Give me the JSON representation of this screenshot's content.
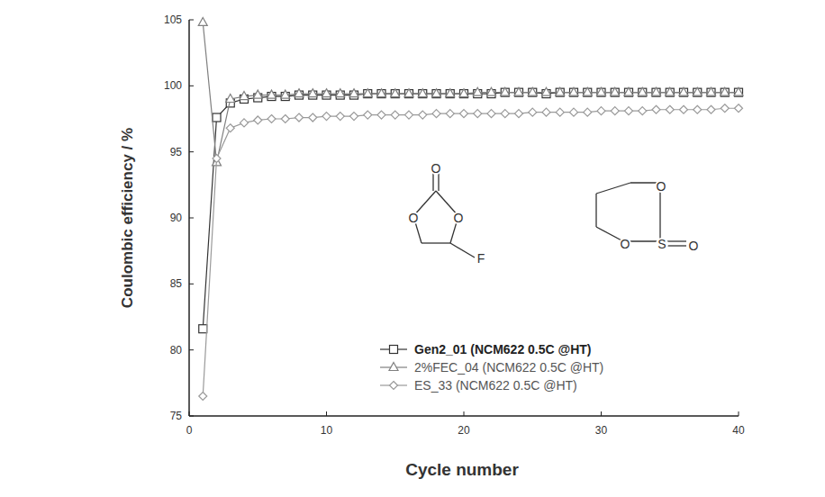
{
  "chart_data": {
    "type": "line",
    "x_label": "Cycle number",
    "y_label": "Coulombic efficiency / %",
    "x": [
      1,
      2,
      3,
      4,
      5,
      6,
      7,
      8,
      9,
      10,
      11,
      12,
      13,
      14,
      15,
      16,
      17,
      18,
      19,
      20,
      21,
      22,
      23,
      24,
      25,
      26,
      27,
      28,
      29,
      30,
      31,
      32,
      33,
      34,
      35,
      36,
      37,
      38,
      39,
      40
    ],
    "series": [
      {
        "name": "Gen2_01 (NCM622 0.5C @HT)",
        "color": "#333333",
        "marker": "square",
        "values": [
          81.6,
          97.6,
          98.7,
          99.0,
          99.1,
          99.2,
          99.2,
          99.3,
          99.3,
          99.3,
          99.3,
          99.3,
          99.4,
          99.4,
          99.4,
          99.4,
          99.4,
          99.4,
          99.4,
          99.4,
          99.4,
          99.4,
          99.5,
          99.5,
          99.5,
          99.4,
          99.5,
          99.5,
          99.5,
          99.5,
          99.5,
          99.5,
          99.5,
          99.5,
          99.5,
          99.5,
          99.5,
          99.5,
          99.5,
          99.5
        ]
      },
      {
        "name": "2%FEC_04 (NCM622 0.5C @HT)",
        "color": "#808080",
        "marker": "triangle",
        "values": [
          104.8,
          94.2,
          99.0,
          99.2,
          99.3,
          99.3,
          99.3,
          99.4,
          99.4,
          99.4,
          99.4,
          99.4,
          99.4,
          99.4,
          99.4,
          99.4,
          99.4,
          99.4,
          99.4,
          99.4,
          99.5,
          99.5,
          99.5,
          99.5,
          99.5,
          99.5,
          99.5,
          99.5,
          99.5,
          99.5,
          99.5,
          99.5,
          99.5,
          99.5,
          99.5,
          99.5,
          99.5,
          99.5,
          99.5,
          99.5
        ]
      },
      {
        "name": "ES_33 (NCM622 0.5C @HT)",
        "color": "#9a9a9a",
        "marker": "diamond",
        "values": [
          76.5,
          94.5,
          96.8,
          97.2,
          97.4,
          97.5,
          97.5,
          97.6,
          97.6,
          97.7,
          97.7,
          97.7,
          97.8,
          97.8,
          97.8,
          97.8,
          97.8,
          97.9,
          97.9,
          97.9,
          97.9,
          97.9,
          97.9,
          97.9,
          98.0,
          98.0,
          98.0,
          98.0,
          98.0,
          98.1,
          98.1,
          98.1,
          98.1,
          98.2,
          98.2,
          98.2,
          98.2,
          98.2,
          98.3,
          98.3
        ]
      }
    ],
    "xlim": [
      0,
      40
    ],
    "xticks": [
      0,
      10,
      20,
      30,
      40
    ],
    "ylim": [
      75,
      105
    ],
    "yticks": [
      75,
      80,
      85,
      90,
      95,
      100,
      105
    ],
    "grid": false,
    "legend": "lower right",
    "annotations": [
      [
        "O",
        "O",
        "O",
        "F"
      ],
      [
        "O",
        "O",
        "S",
        "O"
      ]
    ]
  }
}
